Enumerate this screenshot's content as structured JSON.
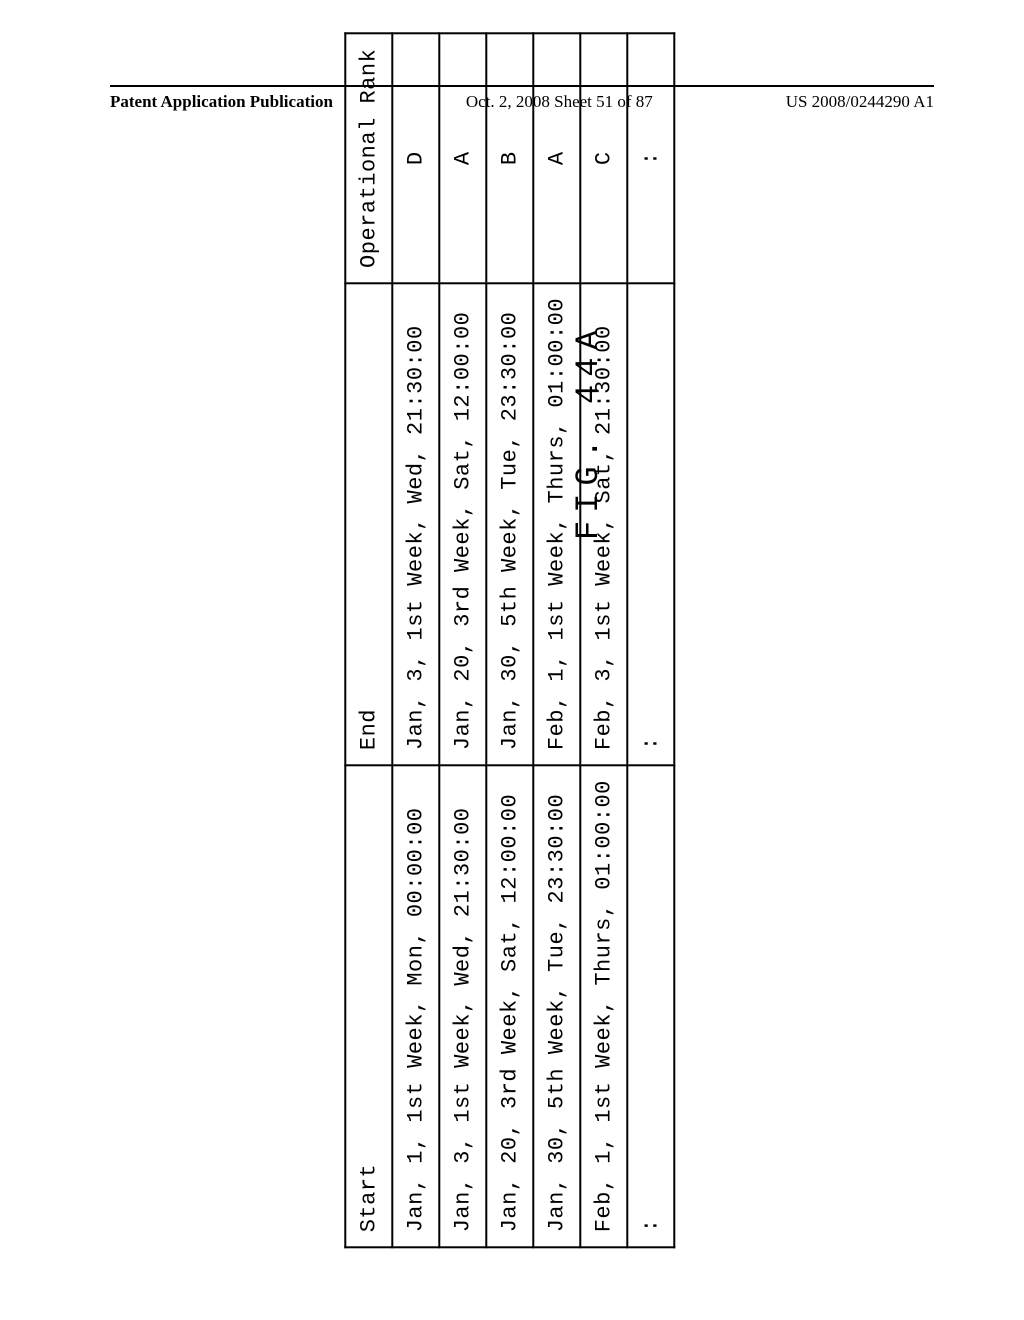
{
  "header": {
    "left": "Patent Application Publication",
    "mid": "Oct. 2, 2008  Sheet 51 of 87",
    "right": "US 2008/0244290 A1"
  },
  "table": {
    "columns": [
      "Start",
      "End",
      "Operational\nRank"
    ],
    "rows": [
      [
        "Jan,  1, 1st Week, Mon, 00:00:00",
        "Jan,  3, 1st Week, Wed, 21:30:00",
        "D"
      ],
      [
        "Jan,  3, 1st Week, Wed, 21:30:00",
        "Jan, 20, 3rd Week, Sat, 12:00:00",
        "A"
      ],
      [
        "Jan, 20, 3rd Week, Sat, 12:00:00",
        "Jan, 30, 5th Week, Tue, 23:30:00",
        "B"
      ],
      [
        "Jan, 30, 5th Week, Tue, 23:30:00",
        "Feb,  1, 1st Week, Thurs, 01:00:00",
        "A"
      ],
      [
        "Feb,  1, 1st Week, Thurs, 01:00:00",
        "Feb,  3, 1st Week, Sat, 21:30:00",
        "C"
      ],
      [
        ":",
        ":",
        ":"
      ]
    ]
  },
  "figure_label": "FIG. 44A"
}
